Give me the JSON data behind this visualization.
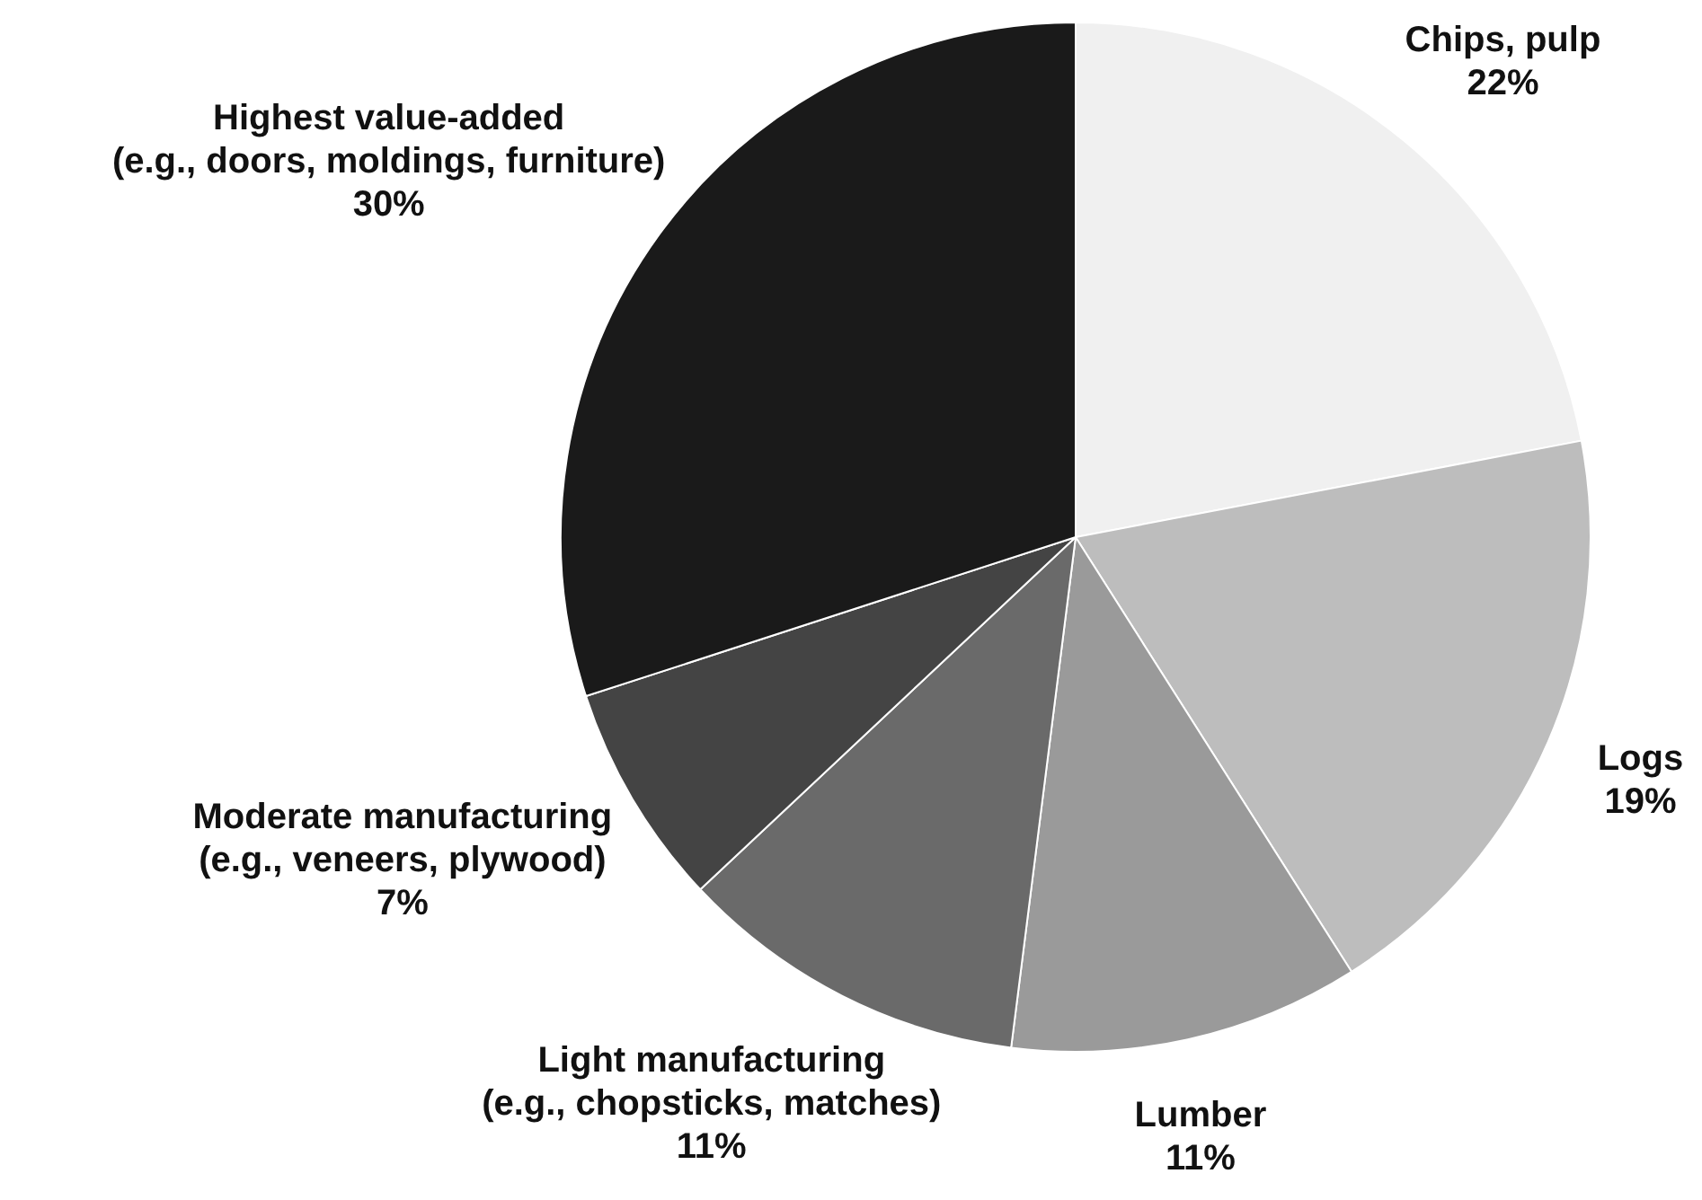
{
  "chart_data": {
    "type": "pie",
    "categories": [
      "Chips, pulp",
      "Logs",
      "Lumber",
      "Light manufacturing\n(e.g., chopsticks, matches)",
      "Moderate manufacturing\n(e.g., veneers, plywood)",
      "Highest value-added\n(e.g., doors, moldings, furniture)"
    ],
    "values": [
      22,
      19,
      11,
      11,
      7,
      30
    ],
    "colors": [
      "#f0f0f0",
      "#bdbdbd",
      "#9a9a9a",
      "#6a6a6a",
      "#444444",
      "#1a1a1a"
    ],
    "value_labels": [
      "22%",
      "19%",
      "11%",
      "11%",
      "7%",
      "30%"
    ],
    "legend": false
  }
}
